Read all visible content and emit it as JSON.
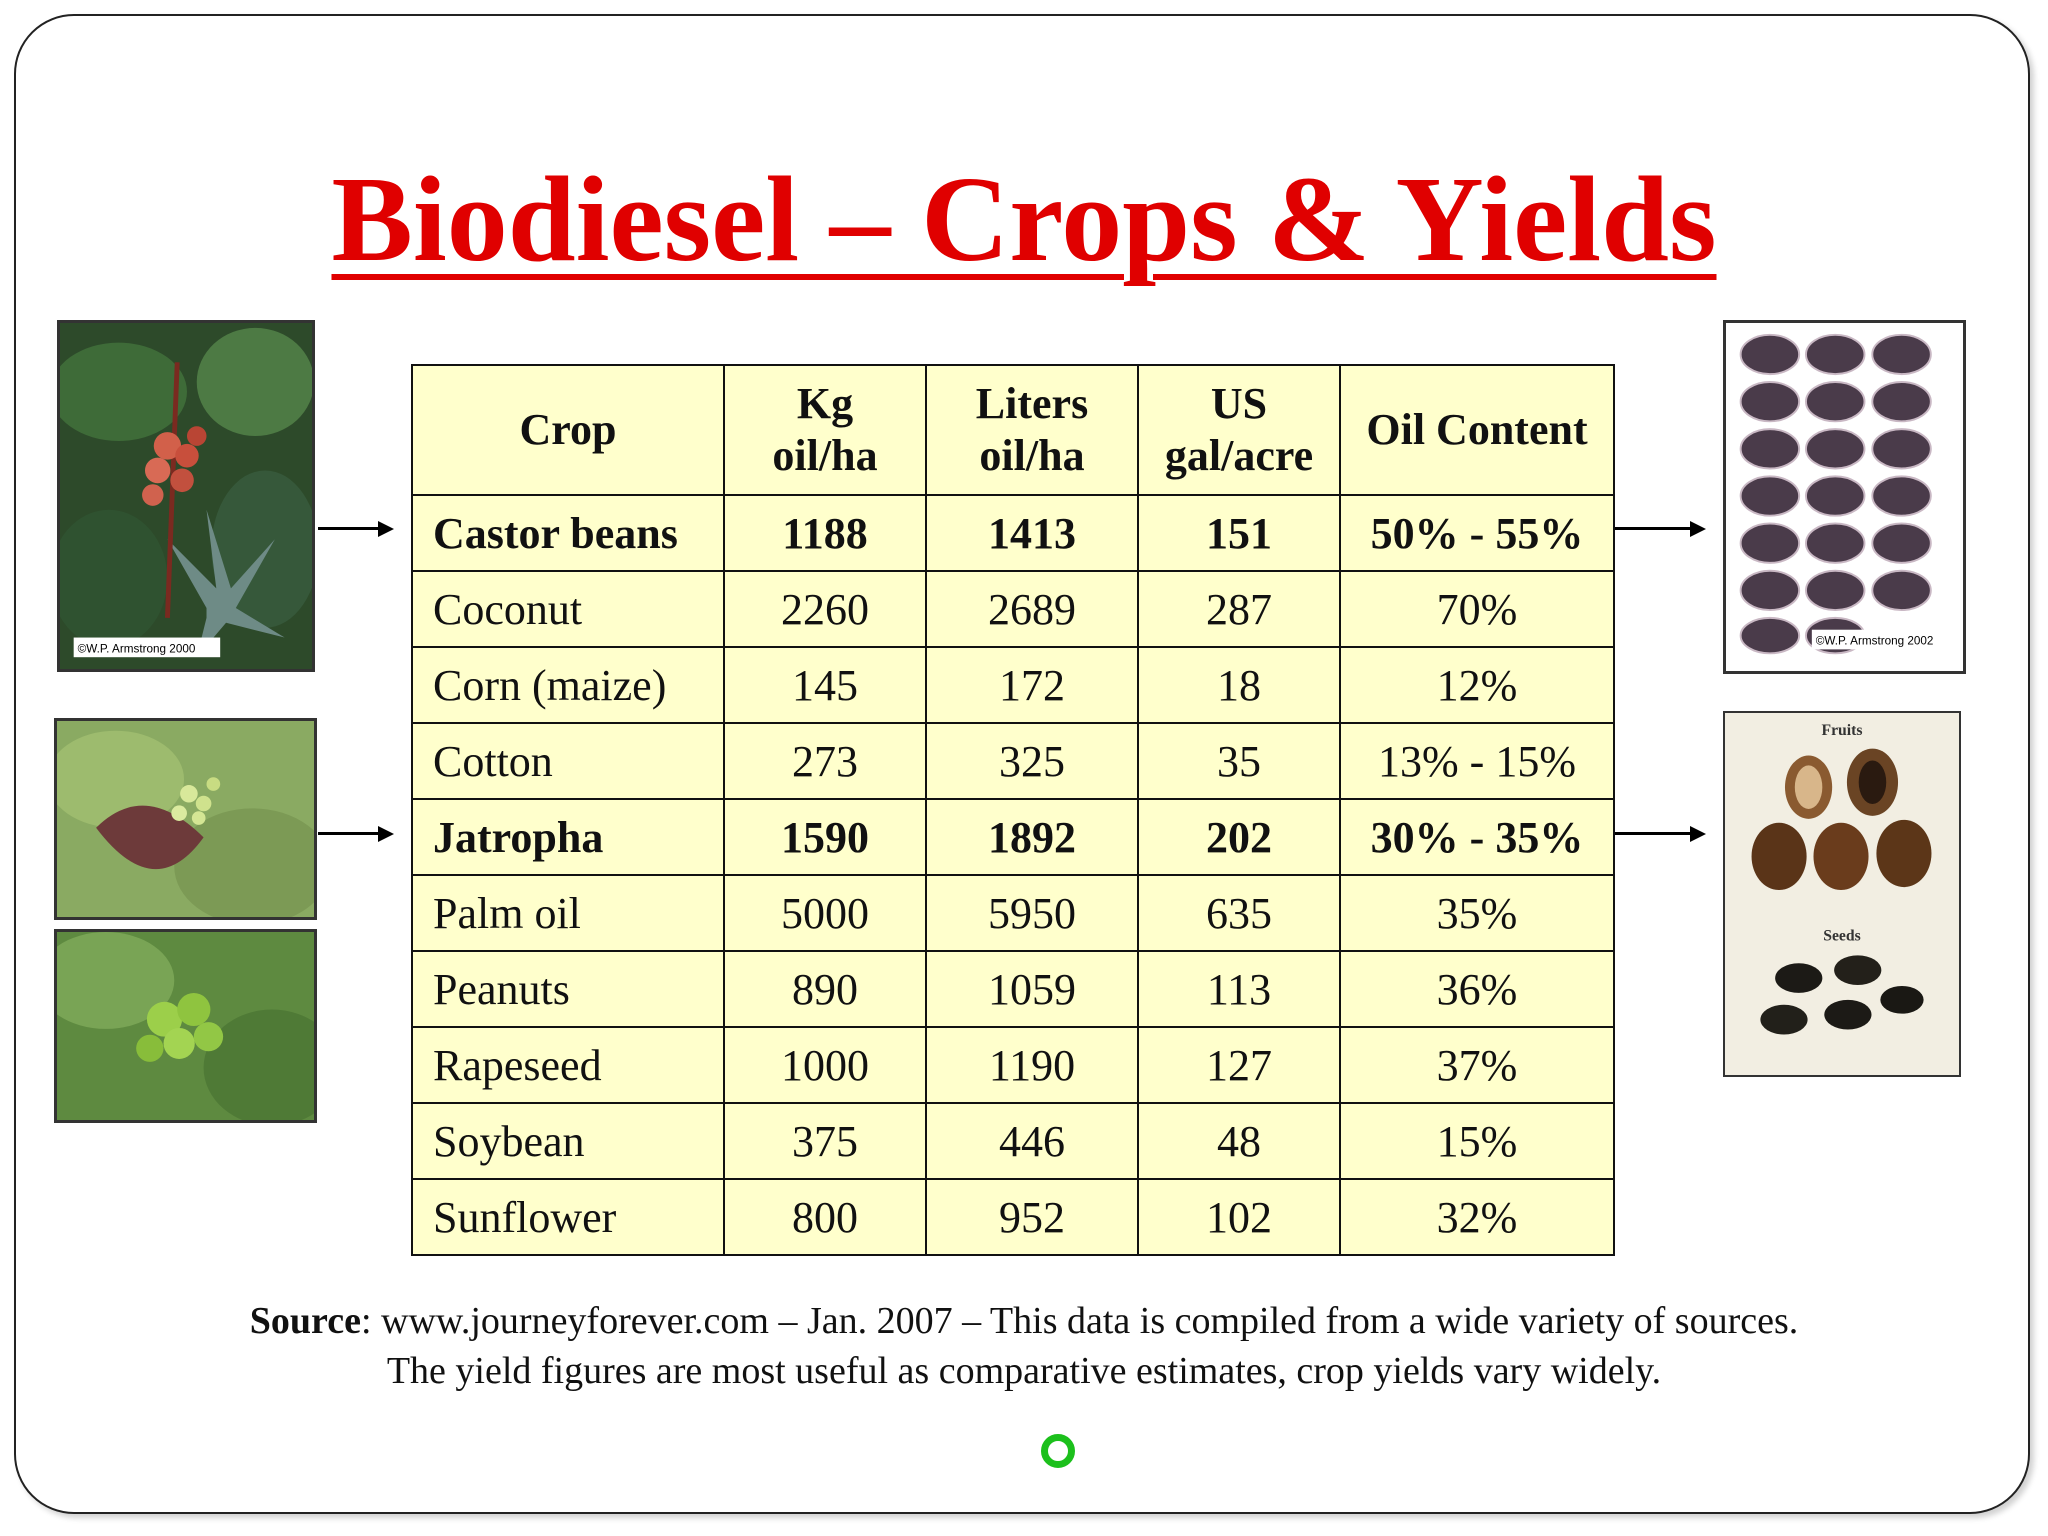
{
  "title": "Biodiesel – Crops & Yields",
  "table": {
    "headers": {
      "crop": "Crop",
      "kg_line1": "Kg",
      "kg_line2": "oil/ha",
      "liters_line1": "Liters",
      "liters_line2": "oil/ha",
      "gal_line1": "US",
      "gal_line2": "gal/acre",
      "oil": "Oil Content"
    },
    "rows": [
      {
        "crop": "Castor beans",
        "kg": "1188",
        "liters": "1413",
        "gal": "151",
        "oil": "50% - 55%",
        "bold": true
      },
      {
        "crop": "Coconut",
        "kg": "2260",
        "liters": "2689",
        "gal": "287",
        "oil": "70%",
        "bold": false
      },
      {
        "crop": "Corn (maize)",
        "kg": "145",
        "liters": "172",
        "gal": "18",
        "oil": "12%",
        "bold": false
      },
      {
        "crop": "Cotton",
        "kg": "273",
        "liters": "325",
        "gal": "35",
        "oil": "13% - 15%",
        "bold": false
      },
      {
        "crop": "Jatropha",
        "kg": "1590",
        "liters": "1892",
        "gal": "202",
        "oil": "30% - 35%",
        "bold": true
      },
      {
        "crop": "Palm oil",
        "kg": "5000",
        "liters": "5950",
        "gal": "635",
        "oil": "35%",
        "bold": false
      },
      {
        "crop": "Peanuts",
        "kg": "890",
        "liters": "1059",
        "gal": "113",
        "oil": "36%",
        "bold": false
      },
      {
        "crop": "Rapeseed",
        "kg": "1000",
        "liters": "1190",
        "gal": "127",
        "oil": "37%",
        "bold": false
      },
      {
        "crop": "Soybean",
        "kg": "375",
        "liters": "446",
        "gal": "48",
        "oil": "15%",
        "bold": false
      },
      {
        "crop": "Sunflower",
        "kg": "800",
        "liters": "952",
        "gal": "102",
        "oil": "32%",
        "bold": false
      }
    ]
  },
  "photos": {
    "castor_plant_credit": "©W.P. Armstrong 2000",
    "castor_seeds_credit": "©W.P. Armstrong 2002",
    "jatropha_fruits_label": "Fruits",
    "jatropha_seeds_label": "Seeds"
  },
  "source": {
    "label": "Source",
    "line1_rest": ": www.journeyforever.com – Jan. 2007 – This data is compiled from a wide variety of sources.",
    "line2": "The yield figures are most useful as comparative estimates, crop yields vary widely."
  },
  "icons": {
    "nav": "circle-icon"
  },
  "colors": {
    "title": "#e00000",
    "table_bg": "#ffffcc",
    "nav_circle": "#1cc01c"
  }
}
